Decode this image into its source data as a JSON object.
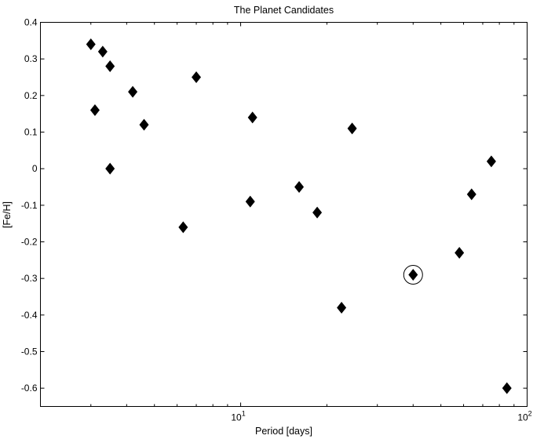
{
  "chart_data": {
    "type": "scatter",
    "title": "The Planet Candidates",
    "xlabel": "Period [days]",
    "ylabel": "[Fe/H]",
    "x_scale": "log",
    "xlim": [
      2,
      100
    ],
    "ylim": [
      -0.65,
      0.4
    ],
    "grid": false,
    "x_ticks": [
      {
        "value": 10,
        "base": "10",
        "exp": "1"
      },
      {
        "value": 100,
        "base": "10",
        "exp": "2"
      }
    ],
    "y_ticks": [
      0.4,
      0.3,
      0.2,
      0.1,
      0,
      -0.1,
      -0.2,
      -0.3,
      -0.4,
      -0.5,
      -0.6
    ],
    "y_tick_labels": [
      "0.4",
      "0.3",
      "0.2",
      "0.1",
      "0",
      "-0.1",
      "-0.2",
      "-0.3",
      "-0.4",
      "-0.5",
      "-0.6"
    ],
    "marker": "diamond",
    "points": [
      {
        "x": 3.0,
        "y": 0.34
      },
      {
        "x": 3.3,
        "y": 0.32
      },
      {
        "x": 3.5,
        "y": 0.28
      },
      {
        "x": 3.1,
        "y": 0.16
      },
      {
        "x": 3.5,
        "y": 0.0
      },
      {
        "x": 4.2,
        "y": 0.21
      },
      {
        "x": 4.6,
        "y": 0.12
      },
      {
        "x": 6.3,
        "y": -0.16
      },
      {
        "x": 7.0,
        "y": 0.25
      },
      {
        "x": 10.8,
        "y": -0.09
      },
      {
        "x": 11.0,
        "y": 0.14
      },
      {
        "x": 16.0,
        "y": -0.05
      },
      {
        "x": 18.5,
        "y": -0.12
      },
      {
        "x": 22.5,
        "y": -0.38
      },
      {
        "x": 24.5,
        "y": 0.11
      },
      {
        "x": 40.0,
        "y": -0.29,
        "highlighted": true
      },
      {
        "x": 58.0,
        "y": -0.23
      },
      {
        "x": 64.0,
        "y": -0.07
      },
      {
        "x": 75.0,
        "y": 0.02
      },
      {
        "x": 85.0,
        "y": -0.6
      }
    ]
  }
}
